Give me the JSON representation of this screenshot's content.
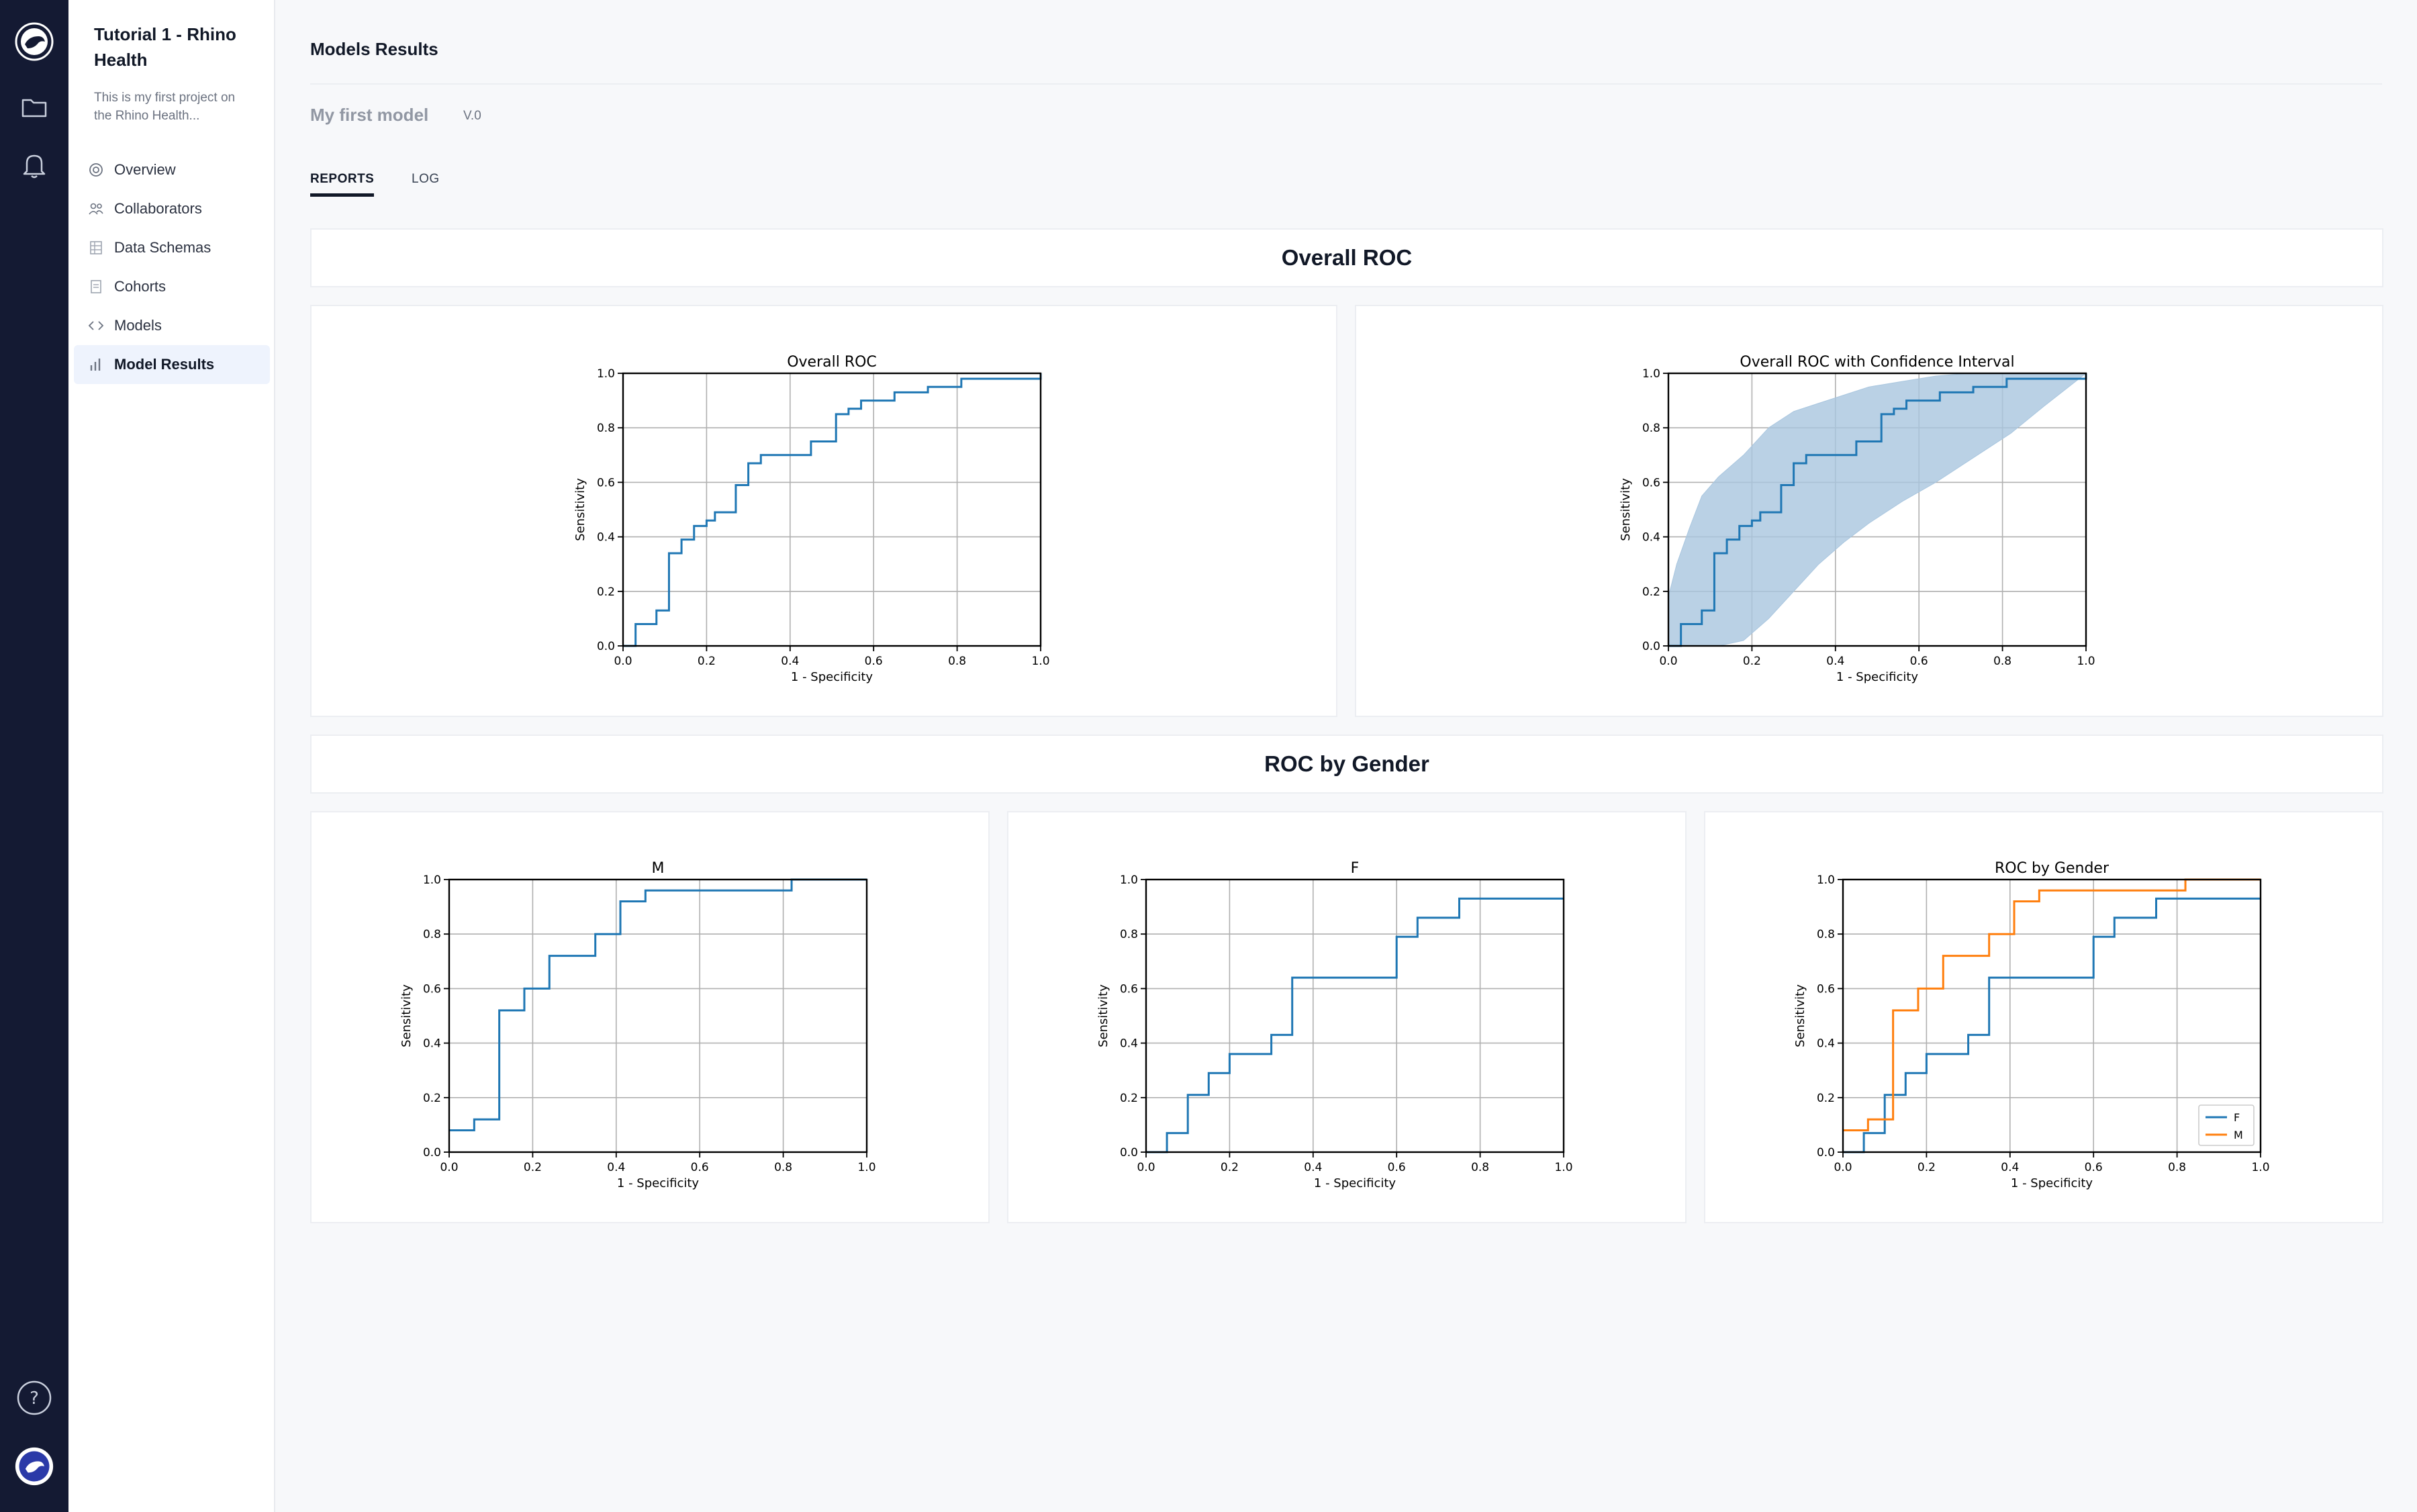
{
  "app": {
    "rail": {
      "icons": [
        "rhino-logo-icon",
        "folder-icon",
        "bell-icon",
        "help-icon",
        "user-avatar-icon"
      ]
    }
  },
  "sidebar": {
    "project_title": "Tutorial 1 - Rhino Health",
    "project_description": "This is my first project on the Rhino Health...",
    "items": [
      {
        "label": "Overview",
        "icon": "overview-icon",
        "active": false
      },
      {
        "label": "Collaborators",
        "icon": "collaborators-icon",
        "active": false
      },
      {
        "label": "Data Schemas",
        "icon": "data-schemas-icon",
        "active": false
      },
      {
        "label": "Cohorts",
        "icon": "cohorts-icon",
        "active": false
      },
      {
        "label": "Models",
        "icon": "code-icon",
        "active": false
      },
      {
        "label": "Model Results",
        "icon": "bar-chart-icon",
        "active": true
      }
    ]
  },
  "header": {
    "page_title": "Models Results",
    "model_name": "My first model",
    "model_version": "V.0"
  },
  "tabs": [
    {
      "label": "REPORTS",
      "active": true
    },
    {
      "label": "LOG",
      "active": false
    }
  ],
  "sections": [
    {
      "title": "Overall ROC"
    },
    {
      "title": "ROC by Gender"
    }
  ],
  "colors": {
    "blue": "#1f77b4",
    "orange": "#ff7f0e",
    "ci_fill": "#a9c6df"
  },
  "chart_data": [
    {
      "id": "overall_roc",
      "type": "line",
      "title": "Overall ROC",
      "xlabel": "1 - Specificity",
      "ylabel": "Sensitivity",
      "xlim": [
        0,
        1
      ],
      "ylim": [
        0,
        1
      ],
      "xticks": [
        "0.0",
        "0.2",
        "0.4",
        "0.6",
        "0.8",
        "1.0"
      ],
      "yticks": [
        "0.0",
        "0.2",
        "0.4",
        "0.6",
        "0.8",
        "1.0"
      ],
      "grid": true,
      "series": [
        {
          "color": "#1f77b4",
          "step": true,
          "x": [
            0,
            0.03,
            0.08,
            0.11,
            0.14,
            0.17,
            0.2,
            0.22,
            0.27,
            0.3,
            0.33,
            0.45,
            0.51,
            0.54,
            0.57,
            0.65,
            0.73,
            0.81,
            1.0
          ],
          "y": [
            0,
            0.08,
            0.13,
            0.34,
            0.39,
            0.44,
            0.46,
            0.49,
            0.59,
            0.67,
            0.7,
            0.75,
            0.85,
            0.87,
            0.9,
            0.93,
            0.95,
            0.98,
            1.0
          ]
        }
      ]
    },
    {
      "id": "overall_roc_ci",
      "type": "line",
      "title": "Overall ROC with Confidence Interval",
      "xlabel": "1 - Specificity",
      "ylabel": "Sensitivity",
      "xlim": [
        0,
        1
      ],
      "ylim": [
        0,
        1
      ],
      "xticks": [
        "0.0",
        "0.2",
        "0.4",
        "0.6",
        "0.8",
        "1.0"
      ],
      "yticks": [
        "0.0",
        "0.2",
        "0.4",
        "0.6",
        "0.8",
        "1.0"
      ],
      "grid": true,
      "series": [
        {
          "color": "#1f77b4",
          "step": true,
          "x": [
            0,
            0.03,
            0.08,
            0.11,
            0.14,
            0.17,
            0.2,
            0.22,
            0.27,
            0.3,
            0.33,
            0.45,
            0.51,
            0.54,
            0.57,
            0.65,
            0.73,
            0.81,
            1.0
          ],
          "y": [
            0,
            0.08,
            0.13,
            0.34,
            0.39,
            0.44,
            0.46,
            0.49,
            0.59,
            0.67,
            0.7,
            0.75,
            0.85,
            0.87,
            0.9,
            0.93,
            0.95,
            0.98,
            1.0
          ]
        }
      ],
      "confidence_band": {
        "color": "#a9c6df",
        "x": [
          0,
          0.02,
          0.05,
          0.08,
          0.12,
          0.18,
          0.24,
          0.3,
          0.36,
          0.42,
          0.48,
          0.56,
          0.64,
          0.72,
          0.82,
          0.9,
          1.0
        ],
        "upper": [
          0.18,
          0.3,
          0.43,
          0.55,
          0.62,
          0.7,
          0.8,
          0.86,
          0.89,
          0.92,
          0.95,
          0.97,
          0.99,
          1.0,
          1.0,
          1.0,
          1.0
        ],
        "lower": [
          0,
          0,
          0,
          0,
          0,
          0.02,
          0.1,
          0.2,
          0.3,
          0.38,
          0.45,
          0.53,
          0.6,
          0.68,
          0.78,
          0.88,
          1.0
        ]
      }
    },
    {
      "id": "roc_m",
      "type": "line",
      "title": "M",
      "xlabel": "1 - Specificity",
      "ylabel": "Sensitivity",
      "xlim": [
        0,
        1
      ],
      "ylim": [
        0,
        1
      ],
      "xticks": [
        "0.0",
        "0.2",
        "0.4",
        "0.6",
        "0.8",
        "1.0"
      ],
      "yticks": [
        "0.0",
        "0.2",
        "0.4",
        "0.6",
        "0.8",
        "1.0"
      ],
      "grid": true,
      "series": [
        {
          "color": "#1f77b4",
          "step": true,
          "x": [
            0,
            0.06,
            0.12,
            0.18,
            0.24,
            0.35,
            0.41,
            0.47,
            0.82,
            1.0
          ],
          "y": [
            0.08,
            0.12,
            0.52,
            0.6,
            0.72,
            0.8,
            0.92,
            0.96,
            1.0,
            1.0
          ]
        }
      ]
    },
    {
      "id": "roc_f",
      "type": "line",
      "title": "F",
      "xlabel": "1 - Specificity",
      "ylabel": "Sensitivity",
      "xlim": [
        0,
        1
      ],
      "ylim": [
        0,
        1
      ],
      "xticks": [
        "0.0",
        "0.2",
        "0.4",
        "0.6",
        "0.8",
        "1.0"
      ],
      "yticks": [
        "0.0",
        "0.2",
        "0.4",
        "0.6",
        "0.8",
        "1.0"
      ],
      "grid": true,
      "series": [
        {
          "color": "#1f77b4",
          "step": true,
          "x": [
            0,
            0.05,
            0.1,
            0.15,
            0.2,
            0.3,
            0.35,
            0.6,
            0.65,
            0.75,
            1.0
          ],
          "y": [
            0,
            0.07,
            0.21,
            0.29,
            0.36,
            0.43,
            0.64,
            0.79,
            0.86,
            0.93,
            0.93
          ]
        }
      ]
    },
    {
      "id": "roc_by_gender",
      "type": "line",
      "title": "ROC by Gender",
      "xlabel": "1 - Specificity",
      "ylabel": "Sensitivity",
      "xlim": [
        0,
        1
      ],
      "ylim": [
        0,
        1
      ],
      "xticks": [
        "0.0",
        "0.2",
        "0.4",
        "0.6",
        "0.8",
        "1.0"
      ],
      "yticks": [
        "0.0",
        "0.2",
        "0.4",
        "0.6",
        "0.8",
        "1.0"
      ],
      "grid": true,
      "legend": "bottom-right",
      "series": [
        {
          "name": "F",
          "color": "#1f77b4",
          "step": true,
          "x": [
            0,
            0.05,
            0.1,
            0.15,
            0.2,
            0.3,
            0.35,
            0.6,
            0.65,
            0.75,
            1.0
          ],
          "y": [
            0,
            0.07,
            0.21,
            0.29,
            0.36,
            0.43,
            0.64,
            0.79,
            0.86,
            0.93,
            0.93
          ]
        },
        {
          "name": "M",
          "color": "#ff7f0e",
          "step": true,
          "x": [
            0,
            0.06,
            0.12,
            0.18,
            0.24,
            0.35,
            0.41,
            0.47,
            0.82,
            1.0
          ],
          "y": [
            0.08,
            0.12,
            0.52,
            0.6,
            0.72,
            0.8,
            0.92,
            0.96,
            1.0,
            1.0
          ]
        }
      ]
    }
  ]
}
